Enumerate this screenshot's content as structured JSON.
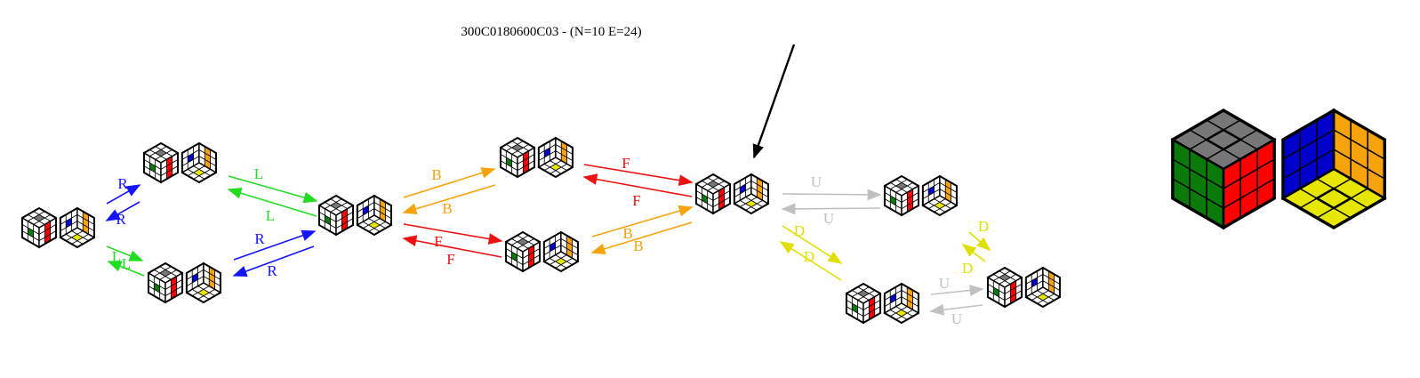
{
  "graph": {
    "title": "300C0180600C03 - (N=10 E=24)",
    "node_count": 10,
    "edge_count": 24
  },
  "colors": {
    "U": "#c0c0c0",
    "D": "#e0e000",
    "L": "#22dd22",
    "R": "#1515ff",
    "F": "#ee1111",
    "B": "#f7a30c",
    "face_gray": "#777777",
    "face_green": "#0a7a0a",
    "face_red": "#ff0000",
    "face_blue": "#0000cc",
    "face_orange": "#f7a30c",
    "face_yellow": "#e6e600",
    "start_arrow": "#000000"
  },
  "nodes": [
    {
      "id": "n0",
      "name": "state-left"
    },
    {
      "id": "n1",
      "name": "state-top-left"
    },
    {
      "id": "n2",
      "name": "state-bottom-left"
    },
    {
      "id": "n3",
      "name": "state-middle"
    },
    {
      "id": "n4",
      "name": "state-top-middle"
    },
    {
      "id": "n5",
      "name": "state-bottom-middle"
    },
    {
      "id": "n6",
      "name": "state-start"
    },
    {
      "id": "n7",
      "name": "state-right-upper"
    },
    {
      "id": "n8",
      "name": "state-right-lower"
    },
    {
      "id": "n9",
      "name": "state-far-right"
    }
  ],
  "edges": [
    {
      "label": "R",
      "color": "R"
    },
    {
      "label": "R",
      "color": "R"
    },
    {
      "label": "L",
      "color": "L"
    },
    {
      "label": "L",
      "color": "L"
    },
    {
      "label": "L",
      "color": "L"
    },
    {
      "label": "L",
      "color": "L"
    },
    {
      "label": "R",
      "color": "R"
    },
    {
      "label": "R",
      "color": "R"
    },
    {
      "label": "B",
      "color": "B"
    },
    {
      "label": "B",
      "color": "B"
    },
    {
      "label": "F",
      "color": "F"
    },
    {
      "label": "F",
      "color": "F"
    },
    {
      "label": "F",
      "color": "F"
    },
    {
      "label": "F",
      "color": "F"
    },
    {
      "label": "B",
      "color": "B"
    },
    {
      "label": "B",
      "color": "B"
    },
    {
      "label": "U",
      "color": "U"
    },
    {
      "label": "U",
      "color": "U"
    },
    {
      "label": "D",
      "color": "D"
    },
    {
      "label": "D",
      "color": "D"
    },
    {
      "label": "D",
      "color": "D"
    },
    {
      "label": "D",
      "color": "D"
    },
    {
      "label": "U",
      "color": "U"
    },
    {
      "label": "U",
      "color": "U"
    }
  ]
}
